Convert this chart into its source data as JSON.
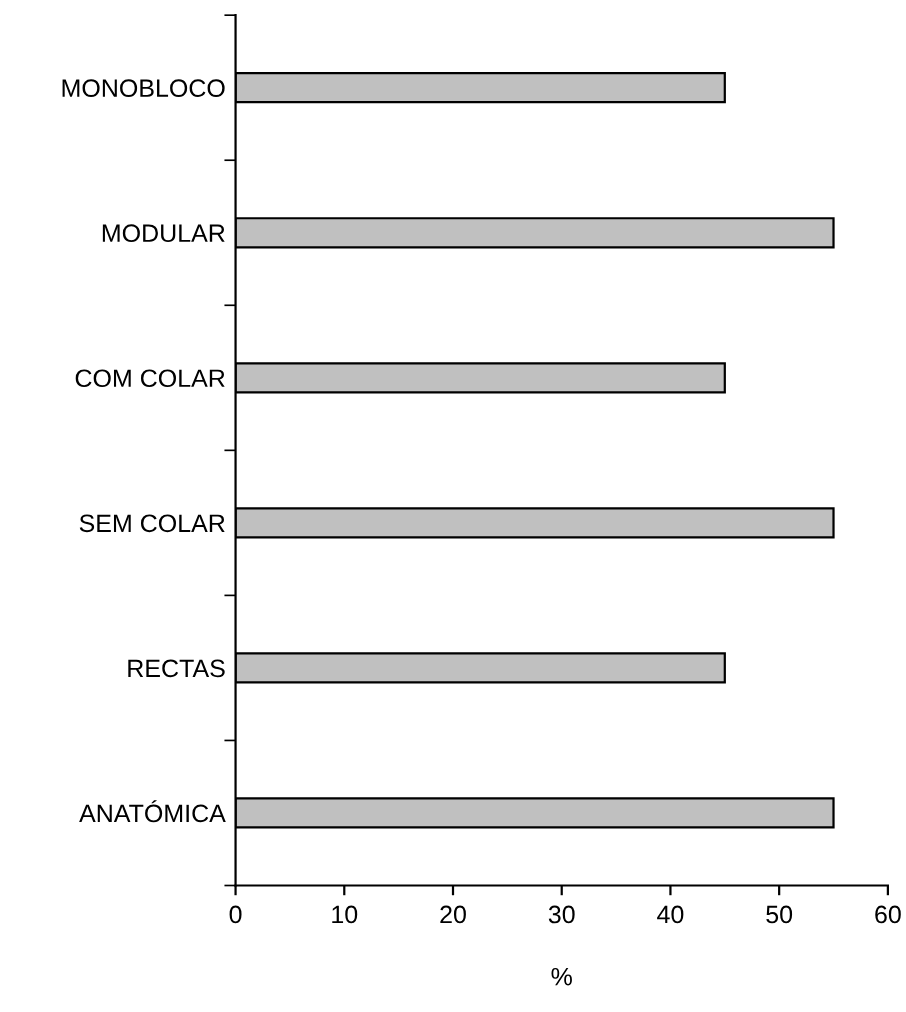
{
  "chart_data": {
    "type": "bar",
    "orientation": "horizontal",
    "categories": [
      "MONOBLOCO",
      "MODULAR",
      "COM COLAR",
      "SEM COLAR",
      "RECTAS",
      "ANATÓMICA"
    ],
    "values": [
      45,
      55,
      45,
      55,
      45,
      55
    ],
    "color": "#c0c0c0",
    "xlabel": "%",
    "xlim": [
      0,
      60
    ],
    "xticks": [
      0,
      10,
      20,
      30,
      40,
      50,
      60
    ],
    "grid": false,
    "legend": false
  }
}
